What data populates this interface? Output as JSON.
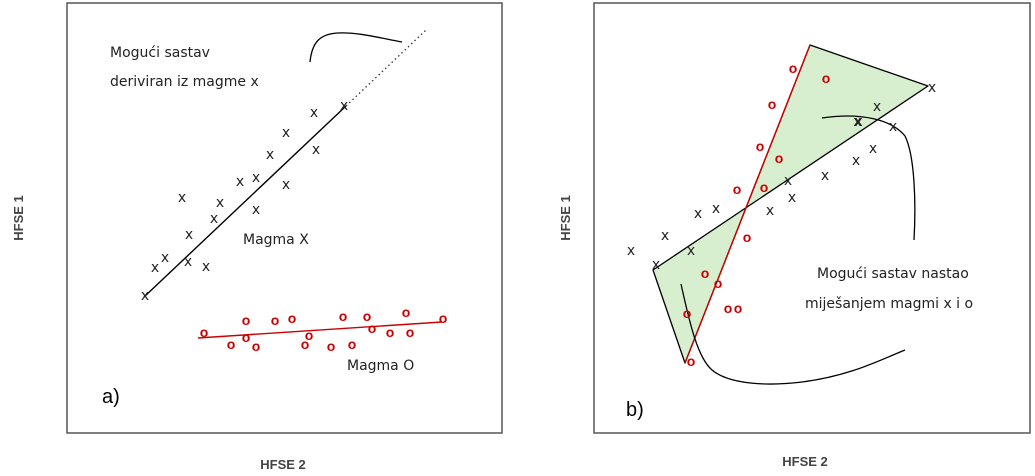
{
  "colors": {
    "magma_o": "#cc0000",
    "magma_x": "#000000",
    "mix_fill": "#d8efcf",
    "frame": "#555555"
  },
  "panel_a": {
    "letter": "a)",
    "y_axis_title": "HFSE 1",
    "x_axis_title": "HFSE 2",
    "annotation_derived": [
      "Mogući sastav",
      "deriviran iz magme x"
    ],
    "label_magma_x": "Magma X",
    "label_magma_o": "Magma O",
    "x_marker": "x",
    "o_marker": "o"
  },
  "panel_b": {
    "letter": "b)",
    "y_axis_title": "HFSE 1",
    "x_axis_title": "HFSE 2",
    "annotation_mixing": [
      "Mogući sastav nastao",
      "miješanjem magmi x i o"
    ],
    "x_marker": "x",
    "o_marker": "o",
    "bold_x_marker": "x"
  }
}
